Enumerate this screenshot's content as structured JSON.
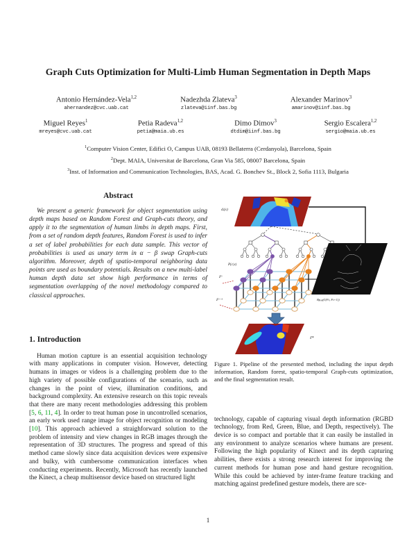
{
  "title": "Graph Cuts Optimization for Multi-Limb Human Segmentation in Depth Maps",
  "authors_row1": [
    {
      "name": "Antonio Hernández-Vela",
      "sup": "1,2",
      "email": "ahernandez@cvc.uab.cat"
    },
    {
      "name": "Nadezhda Zlateva",
      "sup": "3",
      "email": "zlateva@iinf.bas.bg"
    },
    {
      "name": "Alexander Marinov",
      "sup": "3",
      "email": "amarinov@iinf.bas.bg"
    }
  ],
  "authors_row2": [
    {
      "name": "Miguel Reyes",
      "sup": "1",
      "email": "mreyes@cvc.uab.cat"
    },
    {
      "name": "Petia Radeva",
      "sup": "1,2",
      "email": "petia@maia.ub.es"
    },
    {
      "name": "Dimo Dimov",
      "sup": "3",
      "email": "dtdim@iinf.bas.bg"
    },
    {
      "name": "Sergio Escalera",
      "sup": "1,2",
      "email": "sergio@maia.ub.es"
    }
  ],
  "affiliations": [
    {
      "sup": "1",
      "text": "Computer Vision Center, Edifici O, Campus UAB, 08193 Bellaterra (Cerdanyola), Barcelona, Spain"
    },
    {
      "sup": "2",
      "text": "Dept. MAIA, Universitat de Barcelona, Gran Via 585, 08007 Barcelona, Spain"
    },
    {
      "sup": "3",
      "text": "Inst. of Information and Communication Technologies, BAS, Acad. G. Bonchev St., Block 2, Sofia 1113, Bulgaria"
    }
  ],
  "abstract": {
    "heading": "Abstract",
    "text": "We present a generic framework for object segmentation using depth maps based on Random Forest and Graph-cuts theory, and apply it to the segmentation of human limbs in depth maps. First, from a set of random depth features, Random Forest is used to infer a set of label probabilities for each data sample. This vector of probabilities is used as unary term in α − β swap Graph-cuts algorithm. Moreover, depth of spatio-temporal neighboring data points are used as boundary potentials. Results on a new multi-label human depth data set show high performance in terms of segmentation overlapping of the novel methodology compared to classical approaches."
  },
  "intro": {
    "heading": "1. Introduction",
    "segments": [
      {
        "t": "Human motion capture is an essential acquisition technology with many applications in computer vision. However, detecting humans in images or videos is a challenging problem due to the high variety of possible configurations of the scenario, such as changes in the point of view, illumination conditions, and background complexity. An extensive research on this topic reveals that there are many recent methodologies addressing this problem ["
      },
      {
        "t": "5",
        "s": "cite"
      },
      {
        "t": ", "
      },
      {
        "t": "6",
        "s": "cite"
      },
      {
        "t": ", "
      },
      {
        "t": "11",
        "s": "cite"
      },
      {
        "t": ", "
      },
      {
        "t": "4",
        "s": "cite"
      },
      {
        "t": "]. In order to treat human pose in uncontrolled scenarios, an early work used range image for object recognition or modeling ["
      },
      {
        "t": "10",
        "s": "cite"
      },
      {
        "t": "]. This approach achieved a straighforward solution to the problem of intensity and view changes in RGB images through the representation of 3D structures. The progress and spread of this method came slowly since data acquisition devices were expensive and bulky, with cumbersome communication interfaces when conducting experiments. Recently, Microsoft has recently launched the Kinect, a cheap multisensor device based on structured light"
      }
    ]
  },
  "right_column": {
    "text": "technology, capable of capturing visual depth information (RGBD technology, from Red, Green, Blue, and Depth, respectively). The device is so compact and portable that it can easily be installed in any environment to analyze scenarios where humans are present. Following the high popularity of Kinect and its depth capturing abilities, there exists a strong research interest for improving the current methods for human pose and hand gesture recognition. While this could be achieved by inter-frame feature tracking and matching against predefined gesture models, there are sce-"
  },
  "figure": {
    "caption": "Figure 1. Pipeline of the presented method, including the input depth information, Random forest, spatio-temporal Graph-cuts optimization, and the final segmentation result.",
    "labels": {
      "input": "dᵢ(x)",
      "posterior": "P(c|x)",
      "frame_t": "Fᵗ",
      "frame_prev": "Fᵗ⁻¹",
      "boundary": "Bp,q(∂(Ft, Ft+1))",
      "result": "ℓ*"
    }
  },
  "page_number": "1",
  "colors": {
    "citation_green": "#00a314",
    "panel_red": "#9e2018",
    "purple": "#7a52a8",
    "orange": "#e8821e",
    "lattice_blue": "#7ab8d8",
    "lattice_tan": "#d9a468",
    "arrow_blue": "#4a78aa",
    "depth_blue": "#2953e8",
    "depth_cyan": "#3fd8e8",
    "depth_yellow": "#f0e035"
  }
}
